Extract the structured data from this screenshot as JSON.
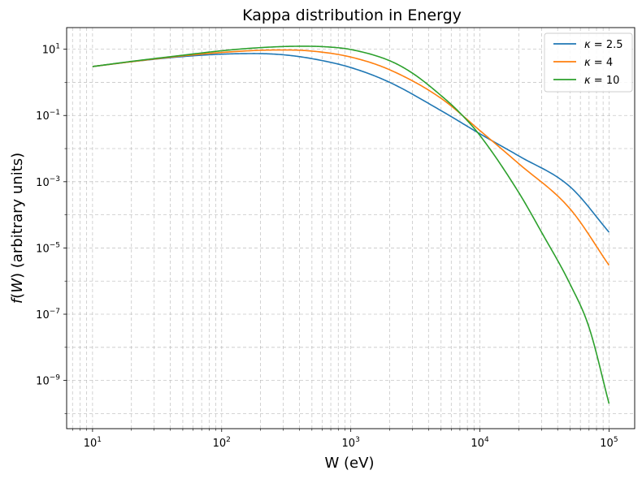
{
  "chart_data": {
    "type": "line",
    "title": "Kappa distribution in Energy",
    "xlabel": "W (eV)",
    "ylabel": "f(W) (arbitrary units)",
    "ylabel_italic_part": "f",
    "ylabel_var": "W",
    "xscale": "log",
    "yscale": "log",
    "xlim": [
      6.3,
      158000
    ],
    "ylim": [
      3.5e-11,
      45
    ],
    "grid": true,
    "legend_position": "top-right",
    "x_ticks": [
      {
        "value": 10,
        "base": "10",
        "exp": "1"
      },
      {
        "value": 100,
        "base": "10",
        "exp": "2"
      },
      {
        "value": 1000,
        "base": "10",
        "exp": "3"
      },
      {
        "value": 10000,
        "base": "10",
        "exp": "4"
      },
      {
        "value": 100000,
        "base": "10",
        "exp": "5"
      }
    ],
    "y_ticks": [
      {
        "value": 10,
        "base": "10",
        "exp": "1"
      },
      {
        "value": 0.1,
        "base": "10",
        "exp": "−1"
      },
      {
        "value": 0.001,
        "base": "10",
        "exp": "−3"
      },
      {
        "value": 1e-05,
        "base": "10",
        "exp": "−5"
      },
      {
        "value": 1e-07,
        "base": "10",
        "exp": "−7"
      },
      {
        "value": 1e-09,
        "base": "10",
        "exp": "−9"
      }
    ],
    "series": [
      {
        "name": "κ = 2.5",
        "kappa_symbol": "κ",
        "kappa_value": "2.5",
        "color": "#1f77b4",
        "x": [
          10,
          20,
          50,
          100,
          180,
          300,
          500,
          1000,
          2000,
          5000,
          10000,
          20000,
          50000,
          100000
        ],
        "y": [
          3.0,
          4.2,
          6.0,
          7.1,
          7.4,
          6.8,
          5.2,
          2.8,
          1.0,
          0.14,
          0.028,
          0.006,
          0.0007,
          3e-05
        ]
      },
      {
        "name": "κ = 4",
        "kappa_symbol": "κ",
        "kappa_value": "4",
        "color": "#ff7f0e",
        "x": [
          10,
          20,
          50,
          100,
          200,
          300,
          500,
          1000,
          2000,
          5000,
          10000,
          20000,
          50000,
          100000
        ],
        "y": [
          3.0,
          4.2,
          6.3,
          8.0,
          9.3,
          9.5,
          8.8,
          5.8,
          2.4,
          0.33,
          0.035,
          0.0035,
          0.00015,
          3e-06
        ]
      },
      {
        "name": "κ = 10",
        "kappa_symbol": "κ",
        "kappa_value": "10",
        "color": "#2ca02c",
        "x": [
          10,
          20,
          50,
          100,
          200,
          400,
          600,
          1000,
          2000,
          3000,
          5000,
          7000,
          10000,
          20000,
          30000,
          50000,
          70000,
          100000
        ],
        "y": [
          3.0,
          4.3,
          6.6,
          9.0,
          11.2,
          12.3,
          12.0,
          9.8,
          4.5,
          1.9,
          0.4,
          0.12,
          0.025,
          0.00047,
          3e-05,
          8e-07,
          4e-08,
          2e-10
        ]
      }
    ]
  }
}
